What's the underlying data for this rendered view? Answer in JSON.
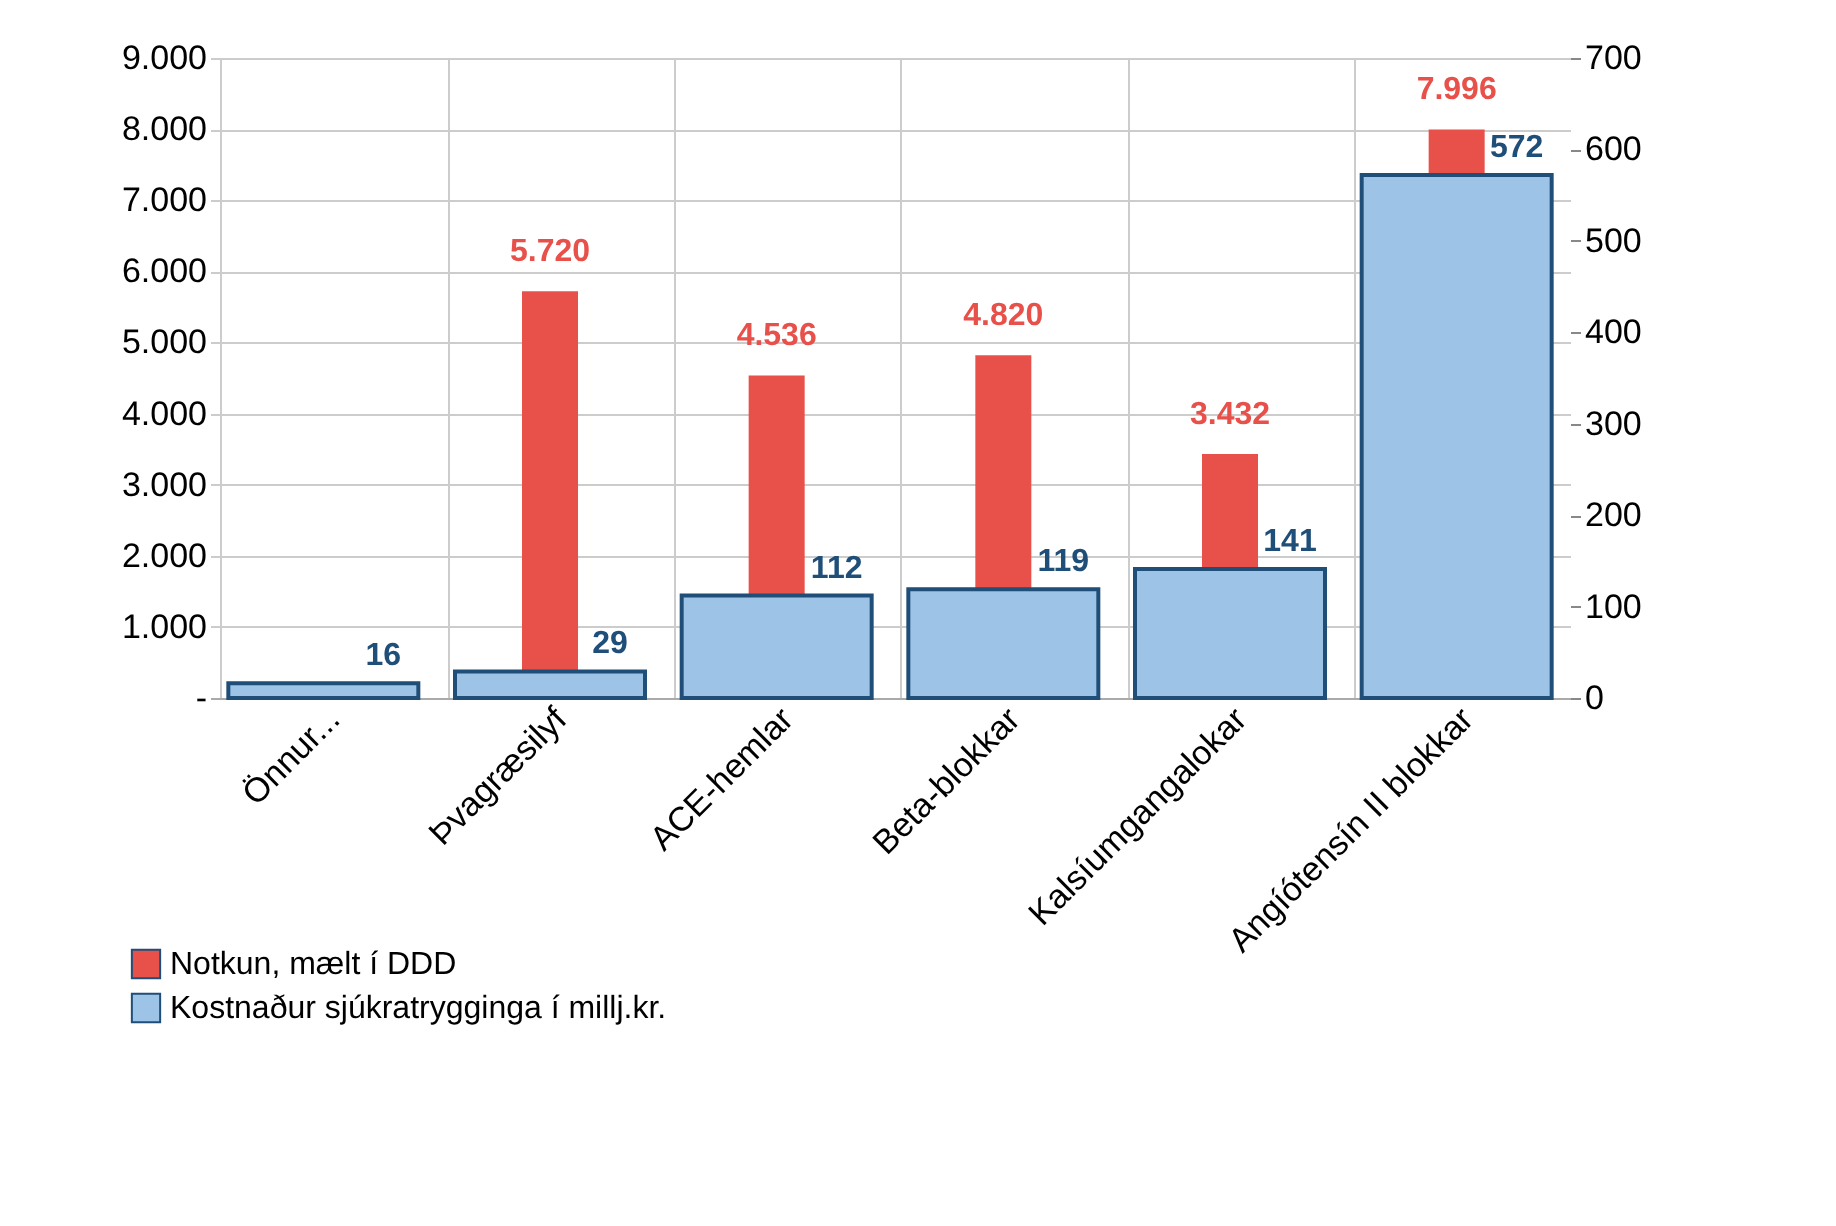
{
  "chart_data": {
    "type": "bar",
    "categories": [
      "Önnur...",
      "Þvagræsilyf",
      "ACE-hemlar",
      "Beta-blokkar",
      "Kalsíumgangalokar",
      "Angíótensín II blokkar"
    ],
    "series": [
      {
        "name": "Notkun, mælt í DDD",
        "color": "#e8504a",
        "values": [
          null,
          5720,
          4536,
          4820,
          3432,
          7996
        ],
        "value_labels": [
          null,
          "5.720",
          "4.536",
          "4.820",
          "3.432",
          "7.996"
        ]
      },
      {
        "name": "Kostnaður sjúkratrygginga í millj.kr.",
        "color": "#9dc3e6",
        "axis": "y2",
        "values": [
          16,
          29,
          112,
          119,
          141,
          572
        ],
        "value_labels": [
          "16",
          "29",
          "112",
          "119",
          "141",
          "572"
        ]
      }
    ],
    "ylim": [
      0,
      9000
    ],
    "yticks": [
      {
        "value": 0,
        "label": "-"
      },
      {
        "value": 1000,
        "label": "1.000"
      },
      {
        "value": 2000,
        "label": "2.000"
      },
      {
        "value": 3000,
        "label": "3.000"
      },
      {
        "value": 4000,
        "label": "4.000"
      },
      {
        "value": 5000,
        "label": "5.000"
      },
      {
        "value": 6000,
        "label": "6.000"
      },
      {
        "value": 7000,
        "label": "7.000"
      },
      {
        "value": 8000,
        "label": "8.000"
      },
      {
        "value": 9000,
        "label": "9.000"
      }
    ],
    "y2lim": [
      0,
      700
    ],
    "y2ticks": [
      0,
      100,
      200,
      300,
      400,
      500,
      600,
      700
    ],
    "grid": true,
    "legend": "bottom left"
  }
}
